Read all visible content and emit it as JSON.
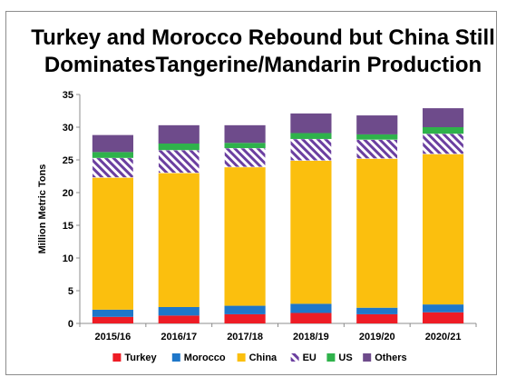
{
  "chart_data": {
    "type": "bar",
    "stacked": true,
    "title_lines": [
      "Turkey and Morocco Rebound but China Still",
      "DominatesTangerine/Mandarin Production"
    ],
    "ylabel": "Million Metric Tons",
    "xlabel": "",
    "ylim": [
      0,
      35
    ],
    "yticks": [
      0,
      5,
      10,
      15,
      20,
      25,
      30,
      35
    ],
    "grid": false,
    "legend_position": "bottom",
    "categories": [
      "2015/16",
      "2016/17",
      "2017/18",
      "2018/19",
      "2019/20",
      "2020/21"
    ],
    "series": [
      {
        "name": "Turkey",
        "color": "#ee1c25",
        "pattern": "solid",
        "values": [
          1.0,
          1.2,
          1.4,
          1.6,
          1.4,
          1.7
        ]
      },
      {
        "name": "Morocco",
        "color": "#1f77c9",
        "pattern": "solid",
        "values": [
          1.1,
          1.3,
          1.3,
          1.4,
          1.0,
          1.2
        ]
      },
      {
        "name": "China",
        "color": "#fbbf0e",
        "pattern": "solid",
        "values": [
          20.2,
          20.5,
          21.2,
          21.9,
          22.8,
          23.0
        ]
      },
      {
        "name": "EU",
        "color": "#6b3fa0",
        "pattern": "striped",
        "values": [
          3.0,
          3.5,
          2.9,
          3.3,
          2.9,
          3.1
        ]
      },
      {
        "name": "US",
        "color": "#2fb24b",
        "pattern": "solid",
        "values": [
          0.9,
          1.0,
          0.8,
          0.9,
          0.8,
          1.0
        ]
      },
      {
        "name": "Others",
        "color": "#6e4b8b",
        "pattern": "solid",
        "values": [
          2.6,
          2.8,
          2.7,
          3.0,
          2.9,
          2.9
        ]
      }
    ]
  }
}
